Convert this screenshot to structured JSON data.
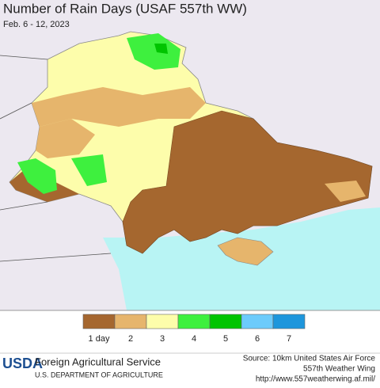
{
  "header": {
    "title": "Number of Rain Days (USAF 557th WW)",
    "subtitle": "Feb. 6 - 12, 2023"
  },
  "legend": {
    "items": [
      {
        "label": "1 day",
        "color": "#a5672f"
      },
      {
        "label": "2",
        "color": "#e6b56c"
      },
      {
        "label": "3",
        "color": "#fdfdab"
      },
      {
        "label": "4",
        "color": "#3ef03e"
      },
      {
        "label": "5",
        "color": "#00c400"
      },
      {
        "label": "6",
        "color": "#6ccbfb"
      },
      {
        "label": "7",
        "color": "#1e96dc"
      }
    ]
  },
  "footer": {
    "logo": "USDA",
    "agency": "Foreign Agricultural Service",
    "department": "U.S. DEPARTMENT OF AGRICULTURE",
    "source": [
      "Source: 10km United States Air Force",
      "557th Weather Wing",
      "http://www.557weatherwing.af.mil/"
    ]
  }
}
